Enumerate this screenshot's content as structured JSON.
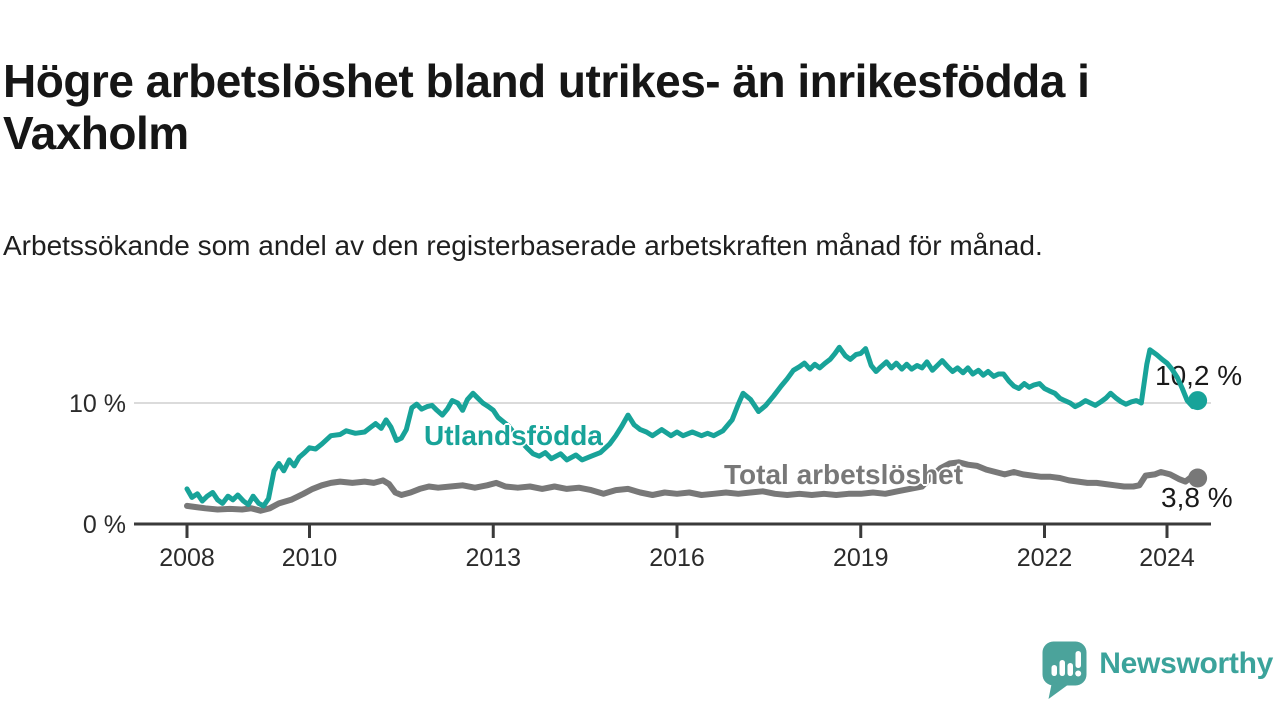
{
  "header": {
    "title": "Högre arbetslöshet bland utrikes- än inrikesfödda i Vaxholm",
    "subtitle": "Arbetssökande som andel av den registerbaserade arbetskraften månad för månad."
  },
  "chart_data": {
    "type": "line",
    "unit": "%",
    "grid": "horizontal, only at 10 %",
    "legend_position": "inline-labels-on-lines",
    "grid_color": "#DBDBDB",
    "axis_color": "#3A3A3A",
    "axis_text_color": "#2B2B2B",
    "value_label_color": "#1A1A1A",
    "x_range": [
      2007.6,
      2024.8
    ],
    "y_range": [
      0,
      15.5
    ],
    "x_ticks": [
      2008,
      2010,
      2013,
      2016,
      2019,
      2022,
      2024
    ],
    "y_ticks": [
      {
        "value": 0,
        "label": "0 %"
      },
      {
        "value": 10,
        "label": "10 %"
      }
    ],
    "series": [
      {
        "name": "Utlandsfödda",
        "color": "#18A399",
        "line_width": 5,
        "end_value": 10.2,
        "end_label": "10,2 %",
        "points": [
          [
            2008.0,
            2.9
          ],
          [
            2008.08,
            2.2
          ],
          [
            2008.17,
            2.5
          ],
          [
            2008.25,
            1.9
          ],
          [
            2008.33,
            2.3
          ],
          [
            2008.42,
            2.6
          ],
          [
            2008.5,
            2.0
          ],
          [
            2008.58,
            1.7
          ],
          [
            2008.67,
            2.3
          ],
          [
            2008.75,
            2.0
          ],
          [
            2008.83,
            2.4
          ],
          [
            2008.92,
            1.9
          ],
          [
            2009.0,
            1.6
          ],
          [
            2009.08,
            2.3
          ],
          [
            2009.17,
            1.7
          ],
          [
            2009.25,
            1.5
          ],
          [
            2009.33,
            2.1
          ],
          [
            2009.42,
            4.4
          ],
          [
            2009.5,
            5.0
          ],
          [
            2009.58,
            4.4
          ],
          [
            2009.67,
            5.3
          ],
          [
            2009.75,
            4.8
          ],
          [
            2009.83,
            5.5
          ],
          [
            2009.92,
            5.9
          ],
          [
            2010.0,
            6.3
          ],
          [
            2010.1,
            6.2
          ],
          [
            2010.2,
            6.6
          ],
          [
            2010.35,
            7.3
          ],
          [
            2010.5,
            7.4
          ],
          [
            2010.6,
            7.7
          ],
          [
            2010.75,
            7.5
          ],
          [
            2010.9,
            7.6
          ],
          [
            2011.0,
            8.0
          ],
          [
            2011.08,
            8.3
          ],
          [
            2011.17,
            7.9
          ],
          [
            2011.25,
            8.6
          ],
          [
            2011.33,
            8.0
          ],
          [
            2011.42,
            6.9
          ],
          [
            2011.5,
            7.1
          ],
          [
            2011.58,
            7.8
          ],
          [
            2011.67,
            9.6
          ],
          [
            2011.75,
            9.9
          ],
          [
            2011.83,
            9.5
          ],
          [
            2011.92,
            9.7
          ],
          [
            2012.0,
            9.8
          ],
          [
            2012.08,
            9.4
          ],
          [
            2012.17,
            9.0
          ],
          [
            2012.25,
            9.5
          ],
          [
            2012.33,
            10.2
          ],
          [
            2012.42,
            10.0
          ],
          [
            2012.5,
            9.4
          ],
          [
            2012.58,
            10.3
          ],
          [
            2012.67,
            10.8
          ],
          [
            2012.75,
            10.4
          ],
          [
            2012.83,
            10.0
          ],
          [
            2012.92,
            9.7
          ],
          [
            2013.0,
            9.4
          ],
          [
            2013.08,
            8.8
          ],
          [
            2013.25,
            8.1
          ],
          [
            2013.42,
            7.0
          ],
          [
            2013.55,
            6.3
          ],
          [
            2013.65,
            5.8
          ],
          [
            2013.75,
            5.6
          ],
          [
            2013.85,
            5.9
          ],
          [
            2013.95,
            5.4
          ],
          [
            2014.1,
            5.8
          ],
          [
            2014.2,
            5.3
          ],
          [
            2014.35,
            5.7
          ],
          [
            2014.45,
            5.3
          ],
          [
            2014.6,
            5.6
          ],
          [
            2014.75,
            5.9
          ],
          [
            2014.9,
            6.6
          ],
          [
            2015.0,
            7.3
          ],
          [
            2015.1,
            8.1
          ],
          [
            2015.2,
            9.0
          ],
          [
            2015.3,
            8.2
          ],
          [
            2015.4,
            7.8
          ],
          [
            2015.5,
            7.6
          ],
          [
            2015.6,
            7.3
          ],
          [
            2015.75,
            7.8
          ],
          [
            2015.9,
            7.3
          ],
          [
            2016.0,
            7.6
          ],
          [
            2016.1,
            7.3
          ],
          [
            2016.25,
            7.6
          ],
          [
            2016.4,
            7.3
          ],
          [
            2016.5,
            7.5
          ],
          [
            2016.6,
            7.3
          ],
          [
            2016.75,
            7.7
          ],
          [
            2016.9,
            8.6
          ],
          [
            2017.0,
            9.9
          ],
          [
            2017.08,
            10.8
          ],
          [
            2017.2,
            10.3
          ],
          [
            2017.33,
            9.3
          ],
          [
            2017.45,
            9.8
          ],
          [
            2017.58,
            10.6
          ],
          [
            2017.7,
            11.4
          ],
          [
            2017.8,
            12.0
          ],
          [
            2017.9,
            12.7
          ],
          [
            2018.0,
            13.0
          ],
          [
            2018.08,
            13.3
          ],
          [
            2018.17,
            12.8
          ],
          [
            2018.25,
            13.2
          ],
          [
            2018.33,
            12.9
          ],
          [
            2018.42,
            13.3
          ],
          [
            2018.5,
            13.6
          ],
          [
            2018.58,
            14.1
          ],
          [
            2018.65,
            14.6
          ],
          [
            2018.75,
            13.9
          ],
          [
            2018.83,
            13.6
          ],
          [
            2018.92,
            14.0
          ],
          [
            2019.0,
            14.1
          ],
          [
            2019.08,
            14.5
          ],
          [
            2019.17,
            13.1
          ],
          [
            2019.25,
            12.6
          ],
          [
            2019.33,
            13.0
          ],
          [
            2019.42,
            13.4
          ],
          [
            2019.5,
            12.9
          ],
          [
            2019.58,
            13.3
          ],
          [
            2019.67,
            12.8
          ],
          [
            2019.75,
            13.2
          ],
          [
            2019.83,
            12.8
          ],
          [
            2019.92,
            13.1
          ],
          [
            2020.0,
            12.9
          ],
          [
            2020.08,
            13.4
          ],
          [
            2020.17,
            12.7
          ],
          [
            2020.25,
            13.1
          ],
          [
            2020.33,
            13.5
          ],
          [
            2020.42,
            13.0
          ],
          [
            2020.5,
            12.6
          ],
          [
            2020.58,
            12.9
          ],
          [
            2020.67,
            12.5
          ],
          [
            2020.75,
            12.9
          ],
          [
            2020.83,
            12.4
          ],
          [
            2020.92,
            12.7
          ],
          [
            2021.0,
            12.3
          ],
          [
            2021.08,
            12.6
          ],
          [
            2021.17,
            12.2
          ],
          [
            2021.25,
            12.4
          ],
          [
            2021.33,
            12.4
          ],
          [
            2021.42,
            11.8
          ],
          [
            2021.5,
            11.4
          ],
          [
            2021.58,
            11.2
          ],
          [
            2021.67,
            11.6
          ],
          [
            2021.75,
            11.3
          ],
          [
            2021.83,
            11.5
          ],
          [
            2021.92,
            11.6
          ],
          [
            2022.0,
            11.2
          ],
          [
            2022.08,
            11.0
          ],
          [
            2022.17,
            10.8
          ],
          [
            2022.25,
            10.4
          ],
          [
            2022.33,
            10.2
          ],
          [
            2022.42,
            10.0
          ],
          [
            2022.5,
            9.7
          ],
          [
            2022.58,
            9.9
          ],
          [
            2022.67,
            10.2
          ],
          [
            2022.75,
            10.0
          ],
          [
            2022.83,
            9.8
          ],
          [
            2022.92,
            10.1
          ],
          [
            2023.0,
            10.4
          ],
          [
            2023.08,
            10.8
          ],
          [
            2023.17,
            10.4
          ],
          [
            2023.25,
            10.1
          ],
          [
            2023.33,
            9.9
          ],
          [
            2023.42,
            10.1
          ],
          [
            2023.5,
            10.2
          ],
          [
            2023.58,
            10.0
          ],
          [
            2023.67,
            13.2
          ],
          [
            2023.72,
            14.4
          ],
          [
            2023.83,
            14.0
          ],
          [
            2023.92,
            13.6
          ],
          [
            2024.0,
            13.3
          ],
          [
            2024.08,
            12.8
          ],
          [
            2024.17,
            12.1
          ],
          [
            2024.25,
            11.2
          ],
          [
            2024.33,
            10.2
          ],
          [
            2024.42,
            9.7
          ],
          [
            2024.5,
            10.2
          ]
        ]
      },
      {
        "name": "Total arbetslöshet",
        "color": "#787878",
        "line_width": 6,
        "end_value": 3.8,
        "end_label": "3,8 %",
        "points": [
          [
            2008.0,
            1.5
          ],
          [
            2008.15,
            1.4
          ],
          [
            2008.3,
            1.3
          ],
          [
            2008.5,
            1.2
          ],
          [
            2008.7,
            1.25
          ],
          [
            2008.9,
            1.2
          ],
          [
            2009.05,
            1.3
          ],
          [
            2009.2,
            1.1
          ],
          [
            2009.35,
            1.3
          ],
          [
            2009.5,
            1.7
          ],
          [
            2009.7,
            2.0
          ],
          [
            2009.9,
            2.5
          ],
          [
            2010.05,
            2.9
          ],
          [
            2010.2,
            3.2
          ],
          [
            2010.35,
            3.4
          ],
          [
            2010.5,
            3.5
          ],
          [
            2010.7,
            3.4
          ],
          [
            2010.9,
            3.5
          ],
          [
            2011.05,
            3.4
          ],
          [
            2011.2,
            3.6
          ],
          [
            2011.3,
            3.3
          ],
          [
            2011.4,
            2.6
          ],
          [
            2011.5,
            2.4
          ],
          [
            2011.65,
            2.6
          ],
          [
            2011.8,
            2.9
          ],
          [
            2011.95,
            3.1
          ],
          [
            2012.1,
            3.0
          ],
          [
            2012.3,
            3.1
          ],
          [
            2012.5,
            3.2
          ],
          [
            2012.7,
            3.0
          ],
          [
            2012.9,
            3.2
          ],
          [
            2013.05,
            3.4
          ],
          [
            2013.2,
            3.1
          ],
          [
            2013.4,
            3.0
          ],
          [
            2013.6,
            3.1
          ],
          [
            2013.8,
            2.9
          ],
          [
            2014.0,
            3.1
          ],
          [
            2014.2,
            2.9
          ],
          [
            2014.4,
            3.0
          ],
          [
            2014.6,
            2.8
          ],
          [
            2014.8,
            2.5
          ],
          [
            2015.0,
            2.8
          ],
          [
            2015.2,
            2.9
          ],
          [
            2015.4,
            2.6
          ],
          [
            2015.6,
            2.4
          ],
          [
            2015.8,
            2.6
          ],
          [
            2016.0,
            2.5
          ],
          [
            2016.2,
            2.6
          ],
          [
            2016.4,
            2.4
          ],
          [
            2016.6,
            2.5
          ],
          [
            2016.8,
            2.6
          ],
          [
            2017.0,
            2.5
          ],
          [
            2017.2,
            2.6
          ],
          [
            2017.4,
            2.7
          ],
          [
            2017.6,
            2.5
          ],
          [
            2017.8,
            2.4
          ],
          [
            2018.0,
            2.5
          ],
          [
            2018.2,
            2.4
          ],
          [
            2018.4,
            2.5
          ],
          [
            2018.6,
            2.4
          ],
          [
            2018.8,
            2.5
          ],
          [
            2019.0,
            2.5
          ],
          [
            2019.2,
            2.6
          ],
          [
            2019.4,
            2.5
          ],
          [
            2019.6,
            2.7
          ],
          [
            2019.8,
            2.9
          ],
          [
            2020.0,
            3.1
          ],
          [
            2020.15,
            3.9
          ],
          [
            2020.3,
            4.6
          ],
          [
            2020.45,
            5.0
          ],
          [
            2020.6,
            5.1
          ],
          [
            2020.75,
            4.9
          ],
          [
            2020.9,
            4.8
          ],
          [
            2021.05,
            4.5
          ],
          [
            2021.2,
            4.3
          ],
          [
            2021.35,
            4.1
          ],
          [
            2021.5,
            4.3
          ],
          [
            2021.65,
            4.1
          ],
          [
            2021.8,
            4.0
          ],
          [
            2021.95,
            3.9
          ],
          [
            2022.1,
            3.9
          ],
          [
            2022.25,
            3.8
          ],
          [
            2022.4,
            3.6
          ],
          [
            2022.55,
            3.5
          ],
          [
            2022.7,
            3.4
          ],
          [
            2022.85,
            3.4
          ],
          [
            2023.0,
            3.3
          ],
          [
            2023.15,
            3.2
          ],
          [
            2023.3,
            3.1
          ],
          [
            2023.45,
            3.1
          ],
          [
            2023.55,
            3.2
          ],
          [
            2023.65,
            4.0
          ],
          [
            2023.8,
            4.1
          ],
          [
            2023.9,
            4.3
          ],
          [
            2024.05,
            4.1
          ],
          [
            2024.2,
            3.7
          ],
          [
            2024.3,
            3.5
          ],
          [
            2024.4,
            3.9
          ],
          [
            2024.5,
            3.8
          ]
        ]
      }
    ]
  },
  "footer": {
    "brand": "Newsworthy",
    "brand_color": "#3BA39B",
    "logo_fill": "#4BA39B",
    "logo_icon": "bar-chart-speech-bubble-icon"
  }
}
